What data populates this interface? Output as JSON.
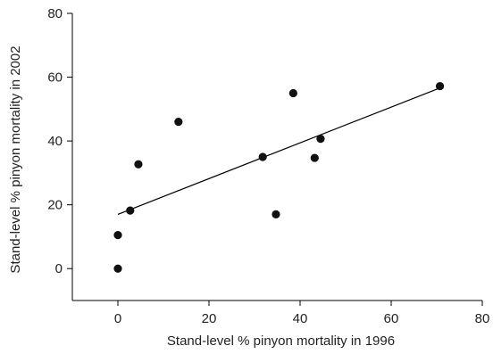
{
  "chart_data": {
    "type": "scatter",
    "title": "",
    "xlabel": "Stand-level % pinyon mortality in 1996",
    "ylabel": "Stand-level % pinyon mortality in 2002",
    "xlim": [
      -10,
      80
    ],
    "ylim": [
      -10,
      80
    ],
    "xticks": [
      0,
      20,
      40,
      60,
      80
    ],
    "yticks": [
      0,
      20,
      40,
      60,
      80
    ],
    "grid": false,
    "series": [
      {
        "points": [
          {
            "x": 0,
            "y": 0
          },
          {
            "x": 0,
            "y": 10.5
          },
          {
            "x": 2.7,
            "y": 18.2
          },
          {
            "x": 4.5,
            "y": 32.7
          },
          {
            "x": 13.3,
            "y": 46
          },
          {
            "x": 31.8,
            "y": 35
          },
          {
            "x": 34.7,
            "y": 17
          },
          {
            "x": 38.5,
            "y": 55
          },
          {
            "x": 43.2,
            "y": 34.7
          },
          {
            "x": 44.5,
            "y": 40.7
          },
          {
            "x": 70.7,
            "y": 57.2
          }
        ]
      }
    ],
    "trendline": {
      "x": [
        0,
        70.5
      ],
      "y": [
        17,
        56.5
      ]
    }
  }
}
